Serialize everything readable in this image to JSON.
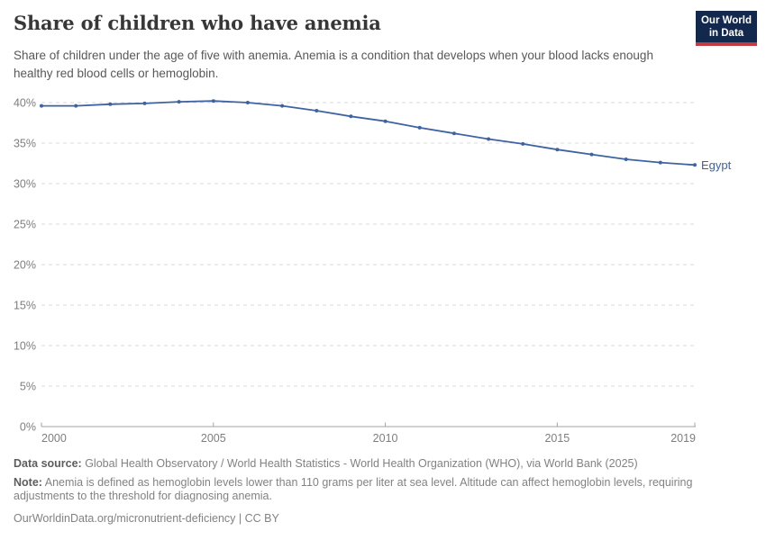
{
  "header": {
    "title": "Share of children who have anemia",
    "subtitle": "Share of children under the age of five with anemia. Anemia is a condition that develops when your blood lacks enough healthy red blood cells or hemoglobin.",
    "logo": {
      "line1": "Our World",
      "line2": "in Data"
    }
  },
  "chart_data": {
    "type": "line",
    "title": "Share of children who have anemia",
    "xlabel": "",
    "ylabel": "",
    "x": [
      2000,
      2001,
      2002,
      2003,
      2004,
      2005,
      2006,
      2007,
      2008,
      2009,
      2010,
      2011,
      2012,
      2013,
      2014,
      2015,
      2016,
      2017,
      2018,
      2019
    ],
    "series": [
      {
        "name": "Egypt",
        "values": [
          39.6,
          39.6,
          39.8,
          39.9,
          40.1,
          40.2,
          40.0,
          39.6,
          39.0,
          38.3,
          37.7,
          36.9,
          36.2,
          35.5,
          34.9,
          34.2,
          33.6,
          33.0,
          32.6,
          32.3
        ]
      }
    ],
    "xlim": [
      2000,
      2019
    ],
    "ylim": [
      0,
      40
    ],
    "x_ticks": [
      2000,
      2005,
      2010,
      2015,
      2019
    ],
    "y_ticks": [
      0,
      5,
      10,
      15,
      20,
      25,
      30,
      35,
      40
    ],
    "y_tick_suffix": "%",
    "grid": "horizontal-dashed",
    "legend_position": "end-of-line-label"
  },
  "footer": {
    "datasource_label": "Data source:",
    "datasource_text": " Global Health Observatory / World Health Statistics - World Health Organization (WHO), via World Bank (2025)",
    "note_label": "Note:",
    "note_text": " Anemia is defined as hemoglobin levels lower than 110 grams per liter at sea level. Altitude can affect hemoglobin levels, requiring adjustments to the threshold for diagnosing anemia.",
    "link": "OurWorldinData.org/micronutrient-deficiency | CC BY"
  },
  "colors": {
    "line": "#3E63A0",
    "marker": "#3E63A0",
    "entity_label": "#3E63A0",
    "grid": "#DBDBDB",
    "axis": "#A3A3A3",
    "tick_label": "#7E7E7E",
    "title": "#373737",
    "subtitle": "#585858",
    "footer": "#828282",
    "footer_bold": "#5D5D5D",
    "logo_background": "#12294D",
    "logo_red_bar": "#C23B43"
  }
}
